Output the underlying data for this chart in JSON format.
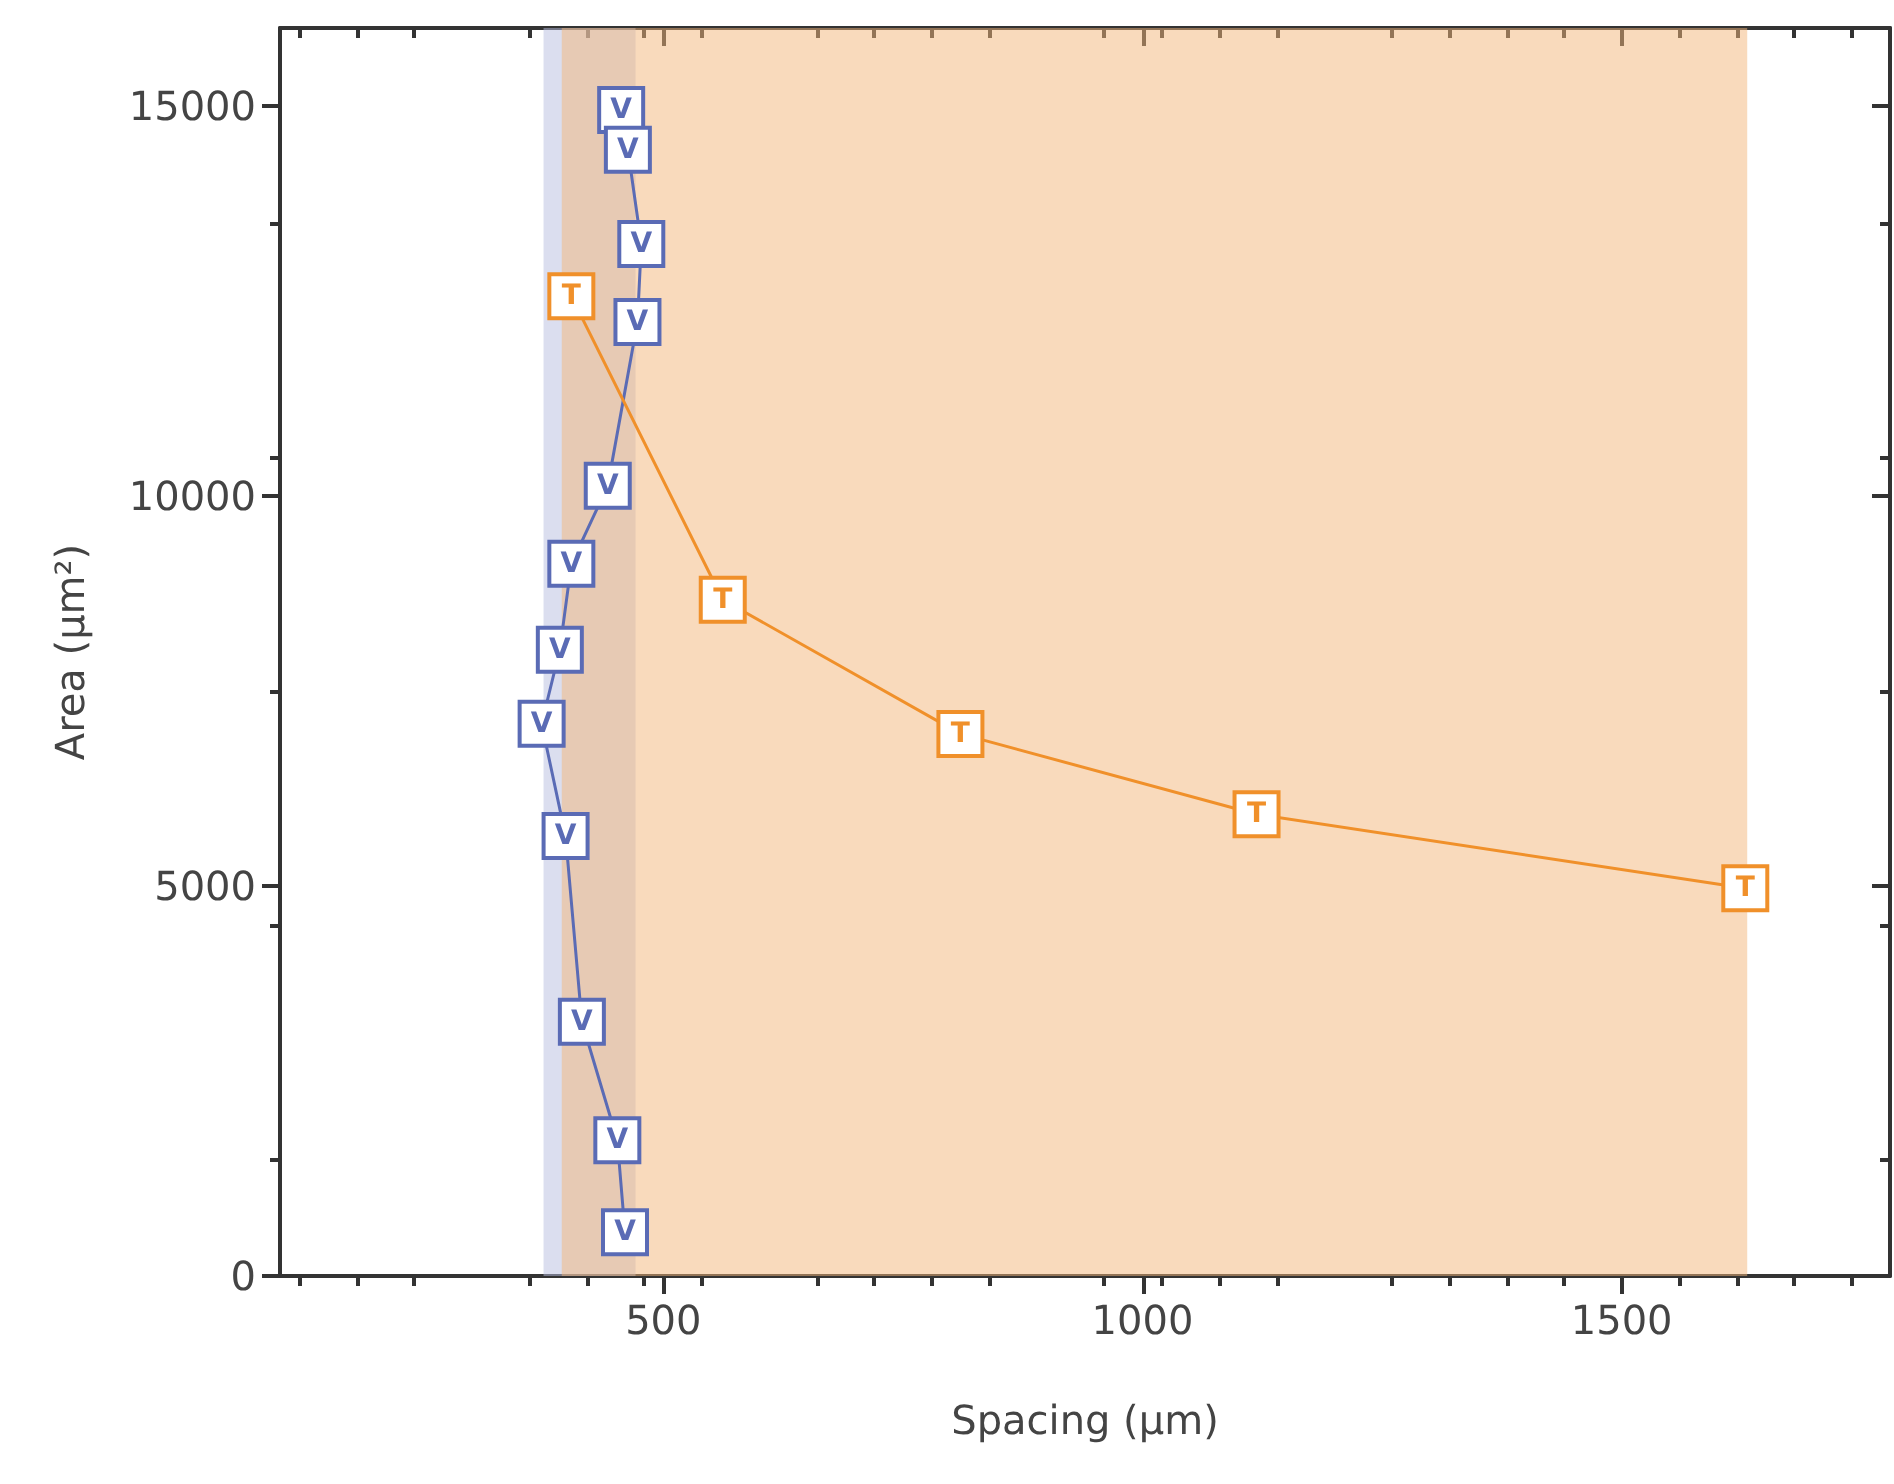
{
  "chart_data": {
    "type": "line",
    "xlabel": "Spacing (µm)",
    "ylabel": "Area (µm²)",
    "xlim": [
      100,
      1780
    ],
    "xticks": [
      500,
      1000,
      1500
    ],
    "ylim": [
      0,
      16000
    ],
    "yticks": [
      0,
      5000,
      10000,
      15000
    ],
    "grid": false,
    "legend": false,
    "marker": "square",
    "line_style": "solid",
    "bands": [
      {
        "axis": "x",
        "from": 375,
        "to": 471,
        "color": "#b8bde0"
      },
      {
        "axis": "x",
        "from": 394,
        "to": 1631,
        "color": "#f3b57a"
      }
    ],
    "series": [
      {
        "name": "V",
        "color": "#5a6bb5",
        "x": [
          456,
          463,
          477,
          473,
          442,
          404,
          392,
          373,
          398,
          415,
          452,
          460
        ],
        "values": [
          14950,
          14440,
          13230,
          12230,
          10130,
          9130,
          8030,
          7080,
          5640,
          3260,
          1740,
          560
        ]
      },
      {
        "name": "T",
        "color": "#f0902a",
        "x": [
          404,
          562,
          810,
          1119,
          1629
        ],
        "values": [
          12560,
          8670,
          6950,
          5920,
          4970
        ]
      }
    ]
  }
}
